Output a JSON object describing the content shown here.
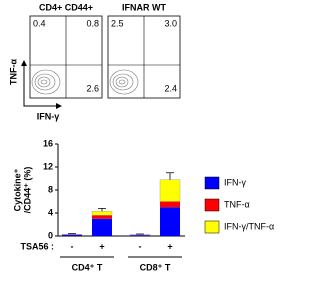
{
  "flow_panels": {
    "y_label": "TNF-α",
    "x_label": "IFN-γ",
    "panels": [
      {
        "title": "CD4+ CD44+",
        "upper_left": "0.4",
        "upper_right": "0.8",
        "lower_right": "2.6"
      },
      {
        "title": "IFNAR WT",
        "upper_left": "2.5",
        "upper_right": "3.0",
        "lower_right": "2.4"
      }
    ]
  },
  "chart_data": {
    "type": "stacked_bar",
    "y_label": [
      "Cytokine⁺",
      "/CD44⁺ (%)"
    ],
    "categories": [
      "-",
      "+",
      "-",
      "+"
    ],
    "x_row_label": "TSA56 :",
    "group_labels": [
      "CD4⁺ T",
      "CD8⁺ T"
    ],
    "series": [
      {
        "name": "IFN-γ",
        "color": "#0000ff",
        "values": [
          0.2,
          3.0,
          0.15,
          5.0
        ]
      },
      {
        "name": "TNF-α",
        "color": "#ff0000",
        "values": [
          0.05,
          0.6,
          0.05,
          1.0
        ]
      },
      {
        "name": "IFN-γ/TNF-α",
        "color": "#ffff00",
        "values": [
          0.05,
          0.7,
          0.05,
          3.8
        ],
        "errors": [
          0.1,
          0.5,
          0.1,
          1.2
        ]
      }
    ],
    "ylim": [
      0,
      16
    ],
    "yticks": [
      0,
      4,
      8,
      12,
      16
    ]
  }
}
